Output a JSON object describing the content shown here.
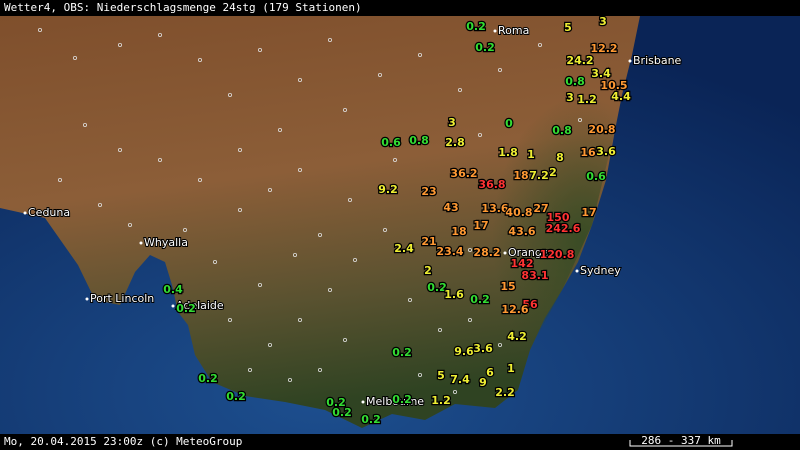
{
  "header": {
    "title": "Wetter4, OBS: Niederschlagsmenge 24stg (179 Stationen)"
  },
  "footer": {
    "timestamp": "Mo, 20.04.2015 23:00z (c) MeteoGroup",
    "scale": "286 - 337 km"
  },
  "cities": [
    {
      "label": "Roma"
    },
    {
      "label": "Brisbane"
    },
    {
      "label": "Ceduna"
    },
    {
      "label": "Whyalla"
    },
    {
      "label": "Orange"
    },
    {
      "label": "Sydney"
    },
    {
      "label": "Port Lincoln"
    },
    {
      "label": "Adelaide"
    },
    {
      "label": "Melbourne"
    }
  ],
  "stations": [
    {
      "label": "0.2",
      "color": "#33dd33"
    },
    {
      "label": "0.2",
      "color": "#33dd33"
    },
    {
      "label": "5",
      "color": "#eeee33"
    },
    {
      "label": "3",
      "color": "#eeee33"
    },
    {
      "label": "12.2",
      "color": "#ff9933"
    },
    {
      "label": "24.2",
      "color": "#eeee33"
    },
    {
      "label": "3.4",
      "color": "#eeee33"
    },
    {
      "label": "0.8",
      "color": "#33dd33"
    },
    {
      "label": "10.5",
      "color": "#ff9933"
    },
    {
      "label": "3",
      "color": "#eeee33"
    },
    {
      "label": "1.2",
      "color": "#eeee33"
    },
    {
      "label": "4.4",
      "color": "#eeee33"
    },
    {
      "label": "3",
      "color": "#eeee33"
    },
    {
      "label": "0",
      "color": "#33dd33"
    },
    {
      "label": "0.8",
      "color": "#33dd33"
    },
    {
      "label": "20.8",
      "color": "#ff9933"
    },
    {
      "label": "0.6",
      "color": "#33dd33"
    },
    {
      "label": "0.8",
      "color": "#33dd33"
    },
    {
      "label": "2.8",
      "color": "#eeee33"
    },
    {
      "label": "1.8",
      "color": "#eeee33"
    },
    {
      "label": "1",
      "color": "#eeee33"
    },
    {
      "label": "8",
      "color": "#eeee33"
    },
    {
      "label": "16",
      "color": "#ff9933"
    },
    {
      "label": "3.6",
      "color": "#eeee33"
    },
    {
      "label": "36.2",
      "color": "#ff9933"
    },
    {
      "label": "18",
      "color": "#ff9933"
    },
    {
      "label": "7.2",
      "color": "#eeee33"
    },
    {
      "label": "2",
      "color": "#eeee33"
    },
    {
      "label": "0.6",
      "color": "#33dd33"
    },
    {
      "label": "9.2",
      "color": "#eeee33"
    },
    {
      "label": "23",
      "color": "#ff9933"
    },
    {
      "label": "36.8",
      "color": "#ff3333"
    },
    {
      "label": "43",
      "color": "#ff9933"
    },
    {
      "label": "13.6",
      "color": "#ff9933"
    },
    {
      "label": "40.8",
      "color": "#ff9933"
    },
    {
      "label": "27",
      "color": "#ff9933"
    },
    {
      "label": "150",
      "color": "#ff3333"
    },
    {
      "label": "17",
      "color": "#ff9933"
    },
    {
      "label": "17",
      "color": "#ff9933"
    },
    {
      "label": "18",
      "color": "#ff9933"
    },
    {
      "label": "43.6",
      "color": "#ff9933"
    },
    {
      "label": "242.6",
      "color": "#ff3333"
    },
    {
      "label": "21",
      "color": "#ff9933"
    },
    {
      "label": "2.4",
      "color": "#eeee33"
    },
    {
      "label": "23.4",
      "color": "#ff9933"
    },
    {
      "label": "28.2",
      "color": "#ff9933"
    },
    {
      "label": "120.8",
      "color": "#ff3333"
    },
    {
      "label": "142",
      "color": "#ff3333"
    },
    {
      "label": "2",
      "color": "#eeee33"
    },
    {
      "label": "83.1",
      "color": "#ff3333"
    },
    {
      "label": "0.2",
      "color": "#33dd33"
    },
    {
      "label": "1.6",
      "color": "#eeee33"
    },
    {
      "label": "0.2",
      "color": "#33dd33"
    },
    {
      "label": "15",
      "color": "#ff9933"
    },
    {
      "label": "56",
      "color": "#ff3333"
    },
    {
      "label": "12.6",
      "color": "#ff9933"
    },
    {
      "label": "4.2",
      "color": "#eeee33"
    },
    {
      "label": "0.4",
      "color": "#33dd33"
    },
    {
      "label": "0.2",
      "color": "#33dd33"
    },
    {
      "label": "0.2",
      "color": "#33dd33"
    },
    {
      "label": "9.6",
      "color": "#eeee33"
    },
    {
      "label": "3.6",
      "color": "#eeee33"
    },
    {
      "label": "1",
      "color": "#eeee33"
    },
    {
      "label": "5",
      "color": "#eeee33"
    },
    {
      "label": "7.4",
      "color": "#eeee33"
    },
    {
      "label": "6",
      "color": "#eeee33"
    },
    {
      "label": "9",
      "color": "#eeee33"
    },
    {
      "label": "0.2",
      "color": "#33dd33"
    },
    {
      "label": "0.2",
      "color": "#33dd33"
    },
    {
      "label": "2.2",
      "color": "#eeee33"
    },
    {
      "label": "0.2",
      "color": "#33dd33"
    },
    {
      "label": "0.2",
      "color": "#33dd33"
    },
    {
      "label": "0.2",
      "color": "#33dd33"
    },
    {
      "label": "1.2",
      "color": "#eeee33"
    },
    {
      "label": "0.2",
      "color": "#33dd33"
    }
  ]
}
